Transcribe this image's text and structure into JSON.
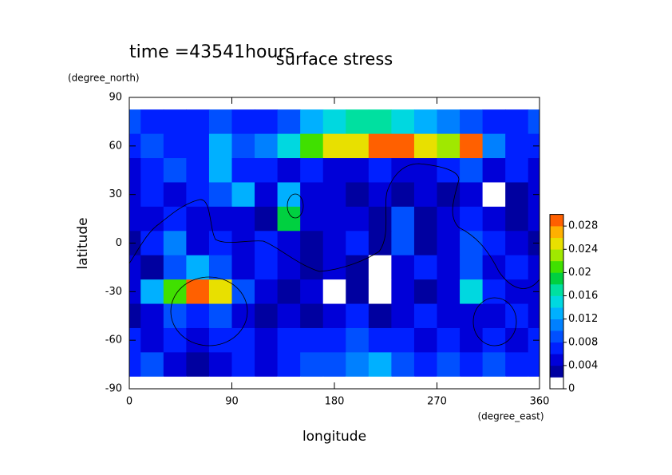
{
  "chart_data": {
    "type": "heatmap",
    "title": "surface stress",
    "subtitle": "time =43541hours",
    "x_label": "longitude",
    "x_unit": "(degree_east)",
    "y_label": "latitude",
    "y_unit": "(degree_north)",
    "x": [
      0,
      20,
      40,
      60,
      80,
      100,
      120,
      140,
      160,
      180,
      200,
      220,
      240,
      260,
      280,
      300,
      320,
      340,
      360
    ],
    "y": [
      90,
      75,
      60,
      45,
      30,
      15,
      0,
      -15,
      -30,
      -45,
      -60,
      -75,
      -90
    ],
    "z": [
      [
        0,
        0,
        0,
        0,
        0,
        0,
        0,
        0,
        0,
        0,
        0,
        0,
        0,
        0,
        0,
        0,
        0,
        0,
        0
      ],
      [
        0.008,
        0.006,
        0.006,
        0.006,
        0.008,
        0.006,
        0.006,
        0.008,
        0.012,
        0.014,
        0.016,
        0.016,
        0.014,
        0.012,
        0.01,
        0.008,
        0.006,
        0.006,
        0.008
      ],
      [
        0.006,
        0.008,
        0.006,
        0.006,
        0.012,
        0.008,
        0.01,
        0.014,
        0.02,
        0.024,
        0.024,
        0.03,
        0.028,
        0.024,
        0.022,
        0.03,
        0.01,
        0.006,
        0.006
      ],
      [
        0.004,
        0.006,
        0.008,
        0.006,
        0.012,
        0.006,
        0.006,
        0.004,
        0.006,
        0.004,
        0.004,
        0.006,
        0.004,
        0.004,
        0.006,
        0.008,
        0.004,
        0.006,
        0.004
      ],
      [
        0.004,
        0.006,
        0.004,
        0.006,
        0.008,
        0.012,
        0.004,
        0.012,
        0.004,
        0.004,
        0.002,
        0.004,
        0.002,
        0.004,
        0.002,
        0.004,
        0,
        0.002,
        0.004
      ],
      [
        0.004,
        0.004,
        0.006,
        0.004,
        0.004,
        0.004,
        0.002,
        0.018,
        0.004,
        0.004,
        0.004,
        0.002,
        0.008,
        0.002,
        0.004,
        0.006,
        0.004,
        0.002,
        0.004
      ],
      [
        0.002,
        0.006,
        0.01,
        0.004,
        0.006,
        0.004,
        0.006,
        0.004,
        0.002,
        0.004,
        0.006,
        0.002,
        0.008,
        0.002,
        0.004,
        0.008,
        0.006,
        0.004,
        0.002
      ],
      [
        0.004,
        0.002,
        0.008,
        0.012,
        0.008,
        0.004,
        0.006,
        0.004,
        0.002,
        0.004,
        0.002,
        0,
        0.004,
        0.006,
        0.004,
        0.008,
        0.004,
        0.006,
        0.004
      ],
      [
        0.004,
        0.012,
        0.02,
        0.028,
        0.024,
        0.008,
        0.004,
        0.002,
        0.004,
        0,
        0.002,
        0,
        0.004,
        0.002,
        0.004,
        0.014,
        0.006,
        0.004,
        0.004
      ],
      [
        0.002,
        0.004,
        0.008,
        0.006,
        0.008,
        0.004,
        0.002,
        0.004,
        0.002,
        0.004,
        0.006,
        0.002,
        0.004,
        0.006,
        0.004,
        0.004,
        0.004,
        0.006,
        0.004
      ],
      [
        0.006,
        0.004,
        0.006,
        0.004,
        0.006,
        0.006,
        0.004,
        0.006,
        0.006,
        0.006,
        0.008,
        0.006,
        0.006,
        0.004,
        0.006,
        0.004,
        0.006,
        0.004,
        0.006
      ],
      [
        0.006,
        0.008,
        0.004,
        0.002,
        0.004,
        0.006,
        0.004,
        0.006,
        0.008,
        0.008,
        0.01,
        0.012,
        0.008,
        0.006,
        0.008,
        0.006,
        0.008,
        0.006,
        0.006
      ],
      [
        0,
        0,
        0,
        0,
        0,
        0,
        0,
        0,
        0,
        0,
        0,
        0,
        0,
        0,
        0,
        0,
        0,
        0,
        0
      ]
    ],
    "xlim": [
      0,
      360
    ],
    "xticks": [
      0,
      90,
      180,
      270,
      360
    ],
    "ylim": [
      -90,
      90
    ],
    "yticks": [
      -90,
      -60,
      -30,
      0,
      30,
      60,
      90
    ],
    "levels": [
      0,
      0.002,
      0.004,
      0.006,
      0.008,
      0.01,
      0.012,
      0.014,
      0.016,
      0.018,
      0.02,
      0.022,
      0.024,
      0.026,
      0.028,
      0.03
    ],
    "colors": [
      "#ffffff",
      "#0000a0",
      "#0000d8",
      "#0020ff",
      "#0050ff",
      "#0080ff",
      "#00b0ff",
      "#00d8e0",
      "#00e0a0",
      "#00d040",
      "#40e000",
      "#a0e800",
      "#e8e000",
      "#ffb000",
      "#ff6000"
    ],
    "clim": [
      0,
      0.03
    ],
    "cticks": [
      0,
      0.004,
      0.008,
      0.012,
      0.016,
      0.02,
      0.024,
      0.028
    ]
  }
}
